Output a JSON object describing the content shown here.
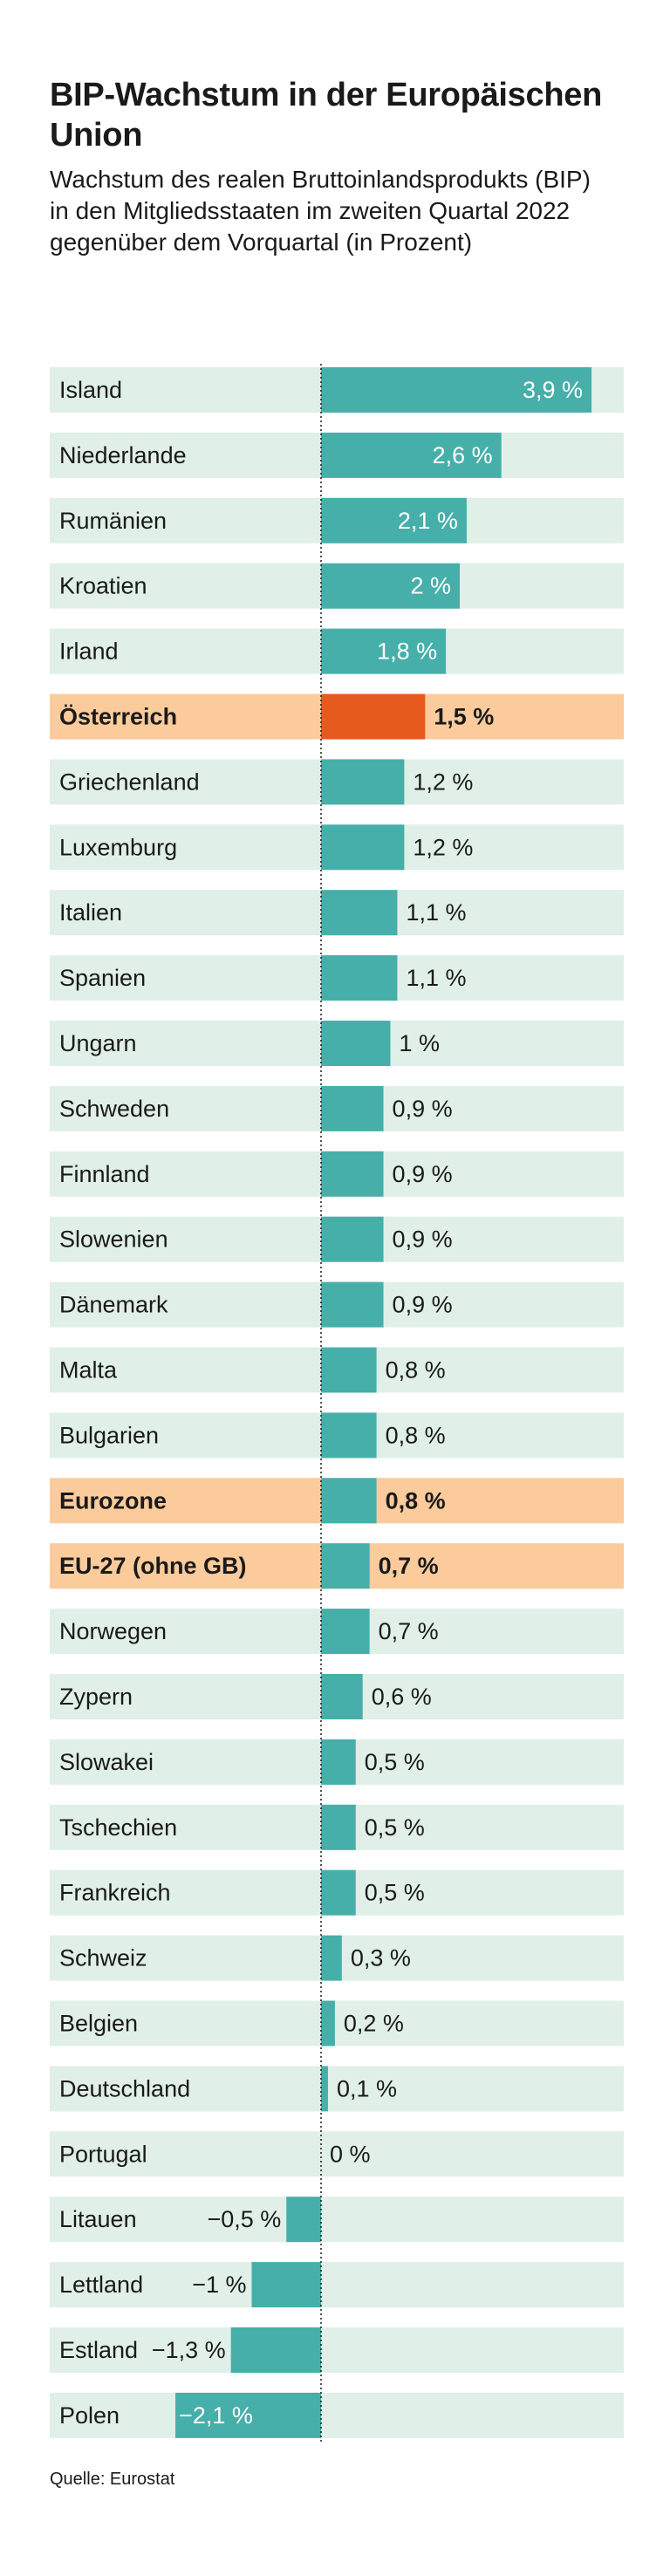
{
  "header": {
    "title": "BIP-Wachstum in der Europäischen Union",
    "subtitle": "Wachstum des realen Bruttoinlandsprodukts (BIP) in den Mitgliedsstaaten im zweiten Quartal 2022 gegenüber dem Vorquartal (in Prozent)"
  },
  "footer": {
    "source": "Quelle: Eurostat"
  },
  "colors": {
    "row_background": "#e0efe8",
    "row_highlight": "#fbcb9c",
    "bar": "#47afa9",
    "bar_highlight": "#e65a1e",
    "zero_line": "#1a1a1a",
    "text": "#1a1a1a",
    "label_inside_bar": "#ffffff"
  },
  "chart_data": {
    "type": "bar",
    "orientation": "horizontal",
    "title": "BIP-Wachstum in der Europäischen Union",
    "subtitle": "Wachstum des realen Bruttoinlandsprodukts (BIP) in den Mitgliedsstaaten im zweiten Quartal 2022 gegenüber dem Vorquartal (in Prozent)",
    "xlabel": "",
    "ylabel": "",
    "xlim": [
      -2.1,
      3.9
    ],
    "grid": false,
    "zero_line": "dotted",
    "rows": [
      {
        "category": "Island",
        "value": 3.9,
        "label": "3,9 %"
      },
      {
        "category": "Niederlande",
        "value": 2.6,
        "label": "2,6 %"
      },
      {
        "category": "Rumänien",
        "value": 2.1,
        "label": "2,1 %"
      },
      {
        "category": "Kroatien",
        "value": 2.0,
        "label": "2 %"
      },
      {
        "category": "Irland",
        "value": 1.8,
        "label": "1,8 %"
      },
      {
        "category": "Österreich",
        "value": 1.5,
        "label": "1,5 %",
        "highlight": true
      },
      {
        "category": "Griechenland",
        "value": 1.2,
        "label": "1,2 %"
      },
      {
        "category": "Luxemburg",
        "value": 1.2,
        "label": "1,2 %"
      },
      {
        "category": "Italien",
        "value": 1.1,
        "label": "1,1 %"
      },
      {
        "category": "Spanien",
        "value": 1.1,
        "label": "1,1 %"
      },
      {
        "category": "Ungarn",
        "value": 1.0,
        "label": "1 %"
      },
      {
        "category": "Schweden",
        "value": 0.9,
        "label": "0,9 %"
      },
      {
        "category": "Finnland",
        "value": 0.9,
        "label": "0,9 %"
      },
      {
        "category": "Slowenien",
        "value": 0.9,
        "label": "0,9 %"
      },
      {
        "category": "Dänemark",
        "value": 0.9,
        "label": "0,9 %"
      },
      {
        "category": "Malta",
        "value": 0.8,
        "label": "0,8 %"
      },
      {
        "category": "Bulgarien",
        "value": 0.8,
        "label": "0,8 %"
      },
      {
        "category": "Eurozone",
        "value": 0.8,
        "label": "0,8 %",
        "aggregate": true
      },
      {
        "category": "EU-27 (ohne GB)",
        "value": 0.7,
        "label": "0,7 %",
        "aggregate": true
      },
      {
        "category": "Norwegen",
        "value": 0.7,
        "label": "0,7 %"
      },
      {
        "category": "Zypern",
        "value": 0.6,
        "label": "0,6 %"
      },
      {
        "category": "Slowakei",
        "value": 0.5,
        "label": "0,5 %"
      },
      {
        "category": "Tschechien",
        "value": 0.5,
        "label": "0,5 %"
      },
      {
        "category": "Frankreich",
        "value": 0.5,
        "label": "0,5 %"
      },
      {
        "category": "Schweiz",
        "value": 0.3,
        "label": "0,3 %"
      },
      {
        "category": "Belgien",
        "value": 0.2,
        "label": "0,2 %"
      },
      {
        "category": "Deutschland",
        "value": 0.1,
        "label": "0,1 %"
      },
      {
        "category": "Portugal",
        "value": 0.0,
        "label": "0 %"
      },
      {
        "category": "Litauen",
        "value": -0.5,
        "label": "−0,5 %"
      },
      {
        "category": "Lettland",
        "value": -1.0,
        "label": "−1 %"
      },
      {
        "category": "Estland",
        "value": -1.3,
        "label": "−1,3 %"
      },
      {
        "category": "Polen",
        "value": -2.1,
        "label": "−2,1 %"
      }
    ]
  }
}
